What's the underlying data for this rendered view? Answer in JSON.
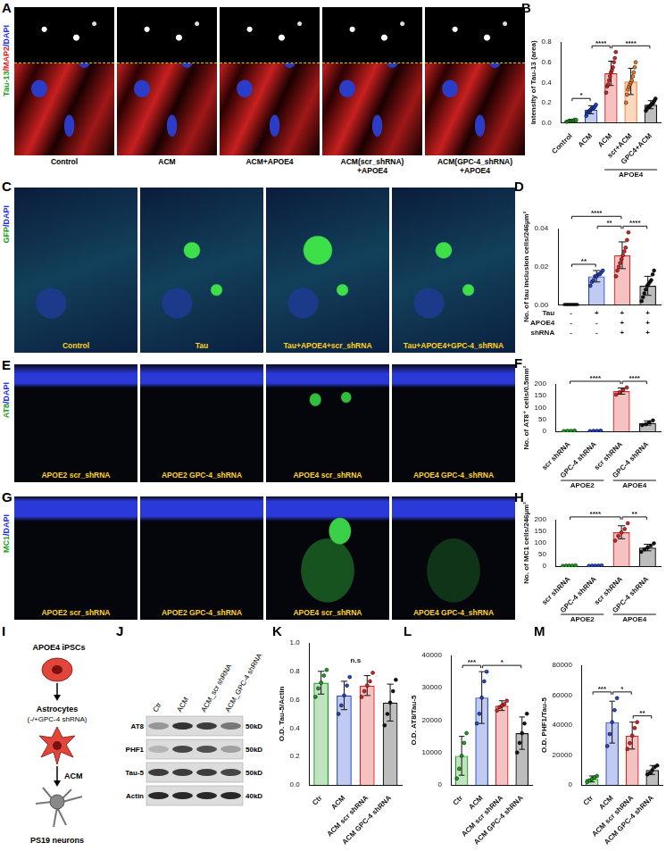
{
  "figure": {
    "image_panels": [
      {
        "letter": "A",
        "stain": [
          {
            "text": "Tau-13",
            "color": "#1a9e1a"
          },
          {
            "text": "/MAP2",
            "color": "#dd2222"
          },
          {
            "text": "/DAPI",
            "color": "#2233dd"
          }
        ],
        "images": [
          [
            "Control"
          ],
          [
            "ACM"
          ],
          [
            "ACM+APOE4"
          ],
          [
            "ACM(scr_shRNA)",
            "+APOE4"
          ],
          [
            "ACM(GPC-4_shRNA)",
            "+APOE4"
          ]
        ]
      },
      {
        "letter": "C",
        "stain": [
          {
            "text": "GFP",
            "color": "#1a9e1a"
          },
          {
            "text": "/DAPI",
            "color": "#2233dd"
          }
        ],
        "images": [
          [
            "Control"
          ],
          [
            "Tau"
          ],
          [
            "Tau+APOE4+scr_shRNA"
          ],
          [
            "Tau+APOE4+GPC-4_shRNA"
          ]
        ]
      },
      {
        "letter": "E",
        "stain": [
          {
            "text": "AT8",
            "color": "#1a9e1a"
          },
          {
            "text": "/DAPI",
            "color": "#2233dd"
          }
        ],
        "images": [
          [
            "APOE2 scr_shRNA"
          ],
          [
            "APOE2 GPC-4_shRNA"
          ],
          [
            "APOE4 scr_shRNA"
          ],
          [
            "APOE4 GPC-4_shRNA"
          ]
        ]
      },
      {
        "letter": "G",
        "stain": [
          {
            "text": "MC1",
            "color": "#1a9e1a"
          },
          {
            "text": "/DAPI",
            "color": "#2233dd"
          }
        ],
        "images": [
          [
            "APOE2 scr_shRNA"
          ],
          [
            "APOE2 GPC-4_shRNA"
          ],
          [
            "APOE4 scr_shRNA"
          ],
          [
            "APOE4 GPC-4_shRNA"
          ]
        ]
      }
    ],
    "schematic": {
      "letter": "I",
      "source": "APOE4 iPSCs",
      "cells": "Astrocytes",
      "treatment": "(-/+GPC-4 shRNA)",
      "medium": "ACM",
      "target": "PS19 neurons"
    },
    "blot": {
      "letter": "J",
      "lanes": [
        "Ctr",
        "ACM",
        "ACM_scr shRNA",
        "ACM_GPC-4 shRNA"
      ],
      "rows": [
        {
          "label": "AT8",
          "size": "50kD"
        },
        {
          "label": "PHF1",
          "size": "50kD"
        },
        {
          "label": "Tau-5",
          "size": "50kD"
        },
        {
          "label": "Actin",
          "size": "40kD"
        }
      ]
    }
  },
  "chart_data": [
    {
      "letter": "B",
      "type": "bar",
      "y_label": "Intensity of Tau-13 (area)",
      "categories": [
        "Control",
        "ACM",
        "ACM",
        "scr+ACM",
        "GPC4+ACM"
      ],
      "values": [
        0.02,
        0.13,
        0.49,
        0.41,
        0.18
      ],
      "errors": [
        0.01,
        0.04,
        0.12,
        0.13,
        0.04
      ],
      "colors": [
        "#1a9e1a",
        "#2244cc",
        "#e02020",
        "#f07820",
        "#111111"
      ],
      "points": [
        [
          0.01,
          0.01,
          0.02,
          0.02,
          0.02,
          0.02,
          0.03,
          0.03
        ],
        [
          0.07,
          0.1,
          0.11,
          0.12,
          0.13,
          0.14,
          0.14,
          0.15,
          0.16,
          0.18
        ],
        [
          0.3,
          0.36,
          0.38,
          0.42,
          0.46,
          0.5,
          0.52,
          0.55,
          0.6,
          0.64,
          0.7
        ],
        [
          0.2,
          0.28,
          0.33,
          0.36,
          0.38,
          0.4,
          0.42,
          0.46,
          0.5,
          0.55,
          0.6
        ],
        [
          0.12,
          0.14,
          0.16,
          0.16,
          0.17,
          0.18,
          0.19,
          0.2,
          0.22,
          0.24
        ]
      ],
      "groups": [
        {
          "label": "APOE4",
          "from": 2,
          "to": 4
        }
      ],
      "significance": [
        {
          "from": 0,
          "to": 1,
          "label": "*"
        },
        {
          "from": 1,
          "to": 2,
          "label": "****"
        },
        {
          "from": 2,
          "to": 4,
          "label": "****"
        }
      ],
      "ylim": [
        0,
        0.8
      ],
      "yticks": [
        {
          "value": 0,
          "label": "0.0"
        },
        0.2,
        0.4,
        0.6,
        0.8
      ],
      "grid": false
    },
    {
      "letter": "D",
      "type": "bar",
      "y_label": "No. of tau inclusion cells/246µm²",
      "categories": [
        null,
        null,
        null,
        null
      ],
      "values": [
        0,
        0.015,
        0.026,
        0.01
      ],
      "errors": [
        0,
        0.003,
        0.007,
        0.005
      ],
      "colors": [
        "#111111",
        "#2244cc",
        "#e02020",
        "#111111"
      ],
      "points": [
        [
          0,
          0,
          0,
          0,
          0,
          0,
          0,
          0
        ],
        [
          0.01,
          0.012,
          0.013,
          0.015,
          0.015,
          0.016,
          0.016,
          0.017,
          0.018
        ],
        [
          0.015,
          0.018,
          0.02,
          0.022,
          0.024,
          0.026,
          0.028,
          0.03,
          0.034,
          0.038
        ],
        [
          0.002,
          0.004,
          0.006,
          0.008,
          0.01,
          0.011,
          0.012,
          0.013,
          0.016,
          0.018
        ]
      ],
      "x_table": {
        "rows": [
          {
            "label": "Tau",
            "values": [
              "-",
              "+",
              "+",
              "+"
            ]
          },
          {
            "label": "APOE4",
            "values": [
              "-",
              "-",
              "+",
              "+"
            ]
          },
          {
            "label": "shRNA",
            "values": [
              "-",
              "-",
              "+",
              "+"
            ]
          }
        ]
      },
      "significance": [
        {
          "from": 0,
          "to": 1,
          "label": "**"
        },
        {
          "from": 1,
          "to": 2,
          "label": "**"
        },
        {
          "from": 2,
          "to": 3,
          "label": "****"
        },
        {
          "from": 0,
          "to": 2,
          "label": "****"
        }
      ],
      "ylim": [
        0,
        0.04
      ],
      "yticks": [
        {
          "value": 0,
          "label": "0.00"
        },
        0.02,
        0.04
      ],
      "grid": false
    },
    {
      "letter": "F",
      "type": "bar",
      "y_label": "No. of AT8⁺ cells/0.5mm²",
      "categories": [
        "scr shRNA",
        "GPC-4 shRNA",
        "scr shRNA",
        "GPC-4 shRNA"
      ],
      "values": [
        2,
        2,
        170,
        35
      ],
      "errors": [
        1,
        1,
        13,
        9
      ],
      "colors": [
        "#1a9e1a",
        "#2244cc",
        "#e02020",
        "#111111"
      ],
      "points": [
        [
          1,
          2,
          2,
          3
        ],
        [
          1,
          2,
          2,
          3
        ],
        [
          155,
          165,
          175,
          185
        ],
        [
          26,
          30,
          38,
          46
        ]
      ],
      "groups": [
        {
          "label": "APOE2",
          "from": 0,
          "to": 1
        },
        {
          "label": "APOE4",
          "from": 2,
          "to": 3
        }
      ],
      "significance": [
        {
          "from": 0,
          "to": 2,
          "label": "****"
        },
        {
          "from": 2,
          "to": 3,
          "label": "****"
        }
      ],
      "ylim": [
        0,
        200
      ],
      "yticks": [
        0,
        50,
        100,
        150,
        200
      ],
      "grid": false
    },
    {
      "letter": "H",
      "type": "bar",
      "y_label": "No. of MC1 cells/246µm²",
      "categories": [
        "scr shRNA",
        "GPC-4 shRNA",
        "scr shRNA",
        "GPC-4 shRNA"
      ],
      "values": [
        2,
        2,
        146,
        80
      ],
      "errors": [
        1,
        1,
        28,
        14
      ],
      "colors": [
        "#1a9e1a",
        "#2244cc",
        "#e02020",
        "#111111"
      ],
      "points": [
        [
          1,
          2,
          2,
          2,
          3
        ],
        [
          1,
          2,
          2,
          2,
          3
        ],
        [
          110,
          130,
          145,
          160,
          185
        ],
        [
          62,
          72,
          80,
          88,
          98
        ]
      ],
      "groups": [
        {
          "label": "APOE2",
          "from": 0,
          "to": 1
        },
        {
          "label": "APOE4",
          "from": 2,
          "to": 3
        }
      ],
      "significance": [
        {
          "from": 0,
          "to": 2,
          "label": "****"
        },
        {
          "from": 2,
          "to": 3,
          "label": "**"
        }
      ],
      "ylim": [
        0,
        200
      ],
      "yticks": [
        0,
        50,
        100,
        150,
        200
      ],
      "grid": false
    },
    {
      "letter": "K",
      "type": "bar",
      "y_label": "O.D. Tau-5/Actin",
      "categories": [
        "Ctr",
        "ACM",
        "ACM scr shRNA",
        "ACM GPC-4 shRNA"
      ],
      "values": [
        0.72,
        0.63,
        0.7,
        0.58
      ],
      "errors": [
        0.08,
        0.1,
        0.07,
        0.13
      ],
      "colors": [
        "#1a9e1a",
        "#2244cc",
        "#e02020",
        "#111111"
      ],
      "points": [
        [
          0.62,
          0.68,
          0.72,
          0.77,
          0.81
        ],
        [
          0.5,
          0.56,
          0.63,
          0.7,
          0.76
        ],
        [
          0.62,
          0.66,
          0.7,
          0.73,
          0.79
        ],
        [
          0.42,
          0.5,
          0.58,
          0.66,
          0.74
        ]
      ],
      "annotations": [
        "n.s"
      ],
      "ylim": [
        0,
        1
      ],
      "yticks": [
        {
          "value": 0,
          "label": "0.0"
        },
        0.2,
        0.4,
        0.6,
        0.8,
        {
          "value": 1,
          "label": "1.0"
        }
      ],
      "grid": false
    },
    {
      "letter": "L",
      "type": "bar",
      "y_label": "O.D. AT8/Tau-5",
      "categories": [
        "Ctr",
        "ACM",
        "ACM scr shRNA",
        "ACM GPC-4 shRNA"
      ],
      "values": [
        9000,
        27000,
        24500,
        16000
      ],
      "errors": [
        6000,
        8000,
        1500,
        5000
      ],
      "colors": [
        "#1a9e1a",
        "#2244cc",
        "#e02020",
        "#111111"
      ],
      "points": [
        [
          2000,
          5000,
          9000,
          13000,
          16000
        ],
        [
          19000,
          22000,
          27000,
          32000,
          35000
        ],
        [
          23000,
          24000,
          24500,
          25000,
          26000
        ],
        [
          10000,
          13000,
          16000,
          19000,
          22000
        ]
      ],
      "significance": [
        {
          "from": 0,
          "to": 1,
          "label": "***"
        },
        {
          "from": 1,
          "to": 3,
          "label": "*"
        }
      ],
      "ylim": [
        0,
        40000
      ],
      "yticks": [
        0,
        10000,
        20000,
        30000,
        40000
      ],
      "grid": false
    },
    {
      "letter": "M",
      "type": "bar",
      "y_label": "O.D. PHF1/Tau-5",
      "categories": [
        "Ctr",
        "ACM",
        "ACM scr shRNA",
        "ACM GPC-4 shRNA"
      ],
      "values": [
        4000,
        42000,
        33000,
        10000
      ],
      "errors": [
        2000,
        14000,
        9000,
        3000
      ],
      "colors": [
        "#1a9e1a",
        "#2244cc",
        "#e02020",
        "#111111"
      ],
      "points": [
        [
          2000,
          3000,
          4000,
          5000,
          6000
        ],
        [
          26000,
          34000,
          42000,
          50000,
          58000
        ],
        [
          24000,
          28000,
          33000,
          38000,
          42000
        ],
        [
          7000,
          8000,
          10000,
          12000,
          13000
        ]
      ],
      "significance": [
        {
          "from": 0,
          "to": 1,
          "label": "***"
        },
        {
          "from": 1,
          "to": 2,
          "label": "*"
        },
        {
          "from": 2,
          "to": 3,
          "label": "**"
        }
      ],
      "ylim": [
        0,
        80000
      ],
      "yticks": [
        0,
        20000,
        40000,
        60000,
        80000
      ],
      "grid": false
    }
  ]
}
